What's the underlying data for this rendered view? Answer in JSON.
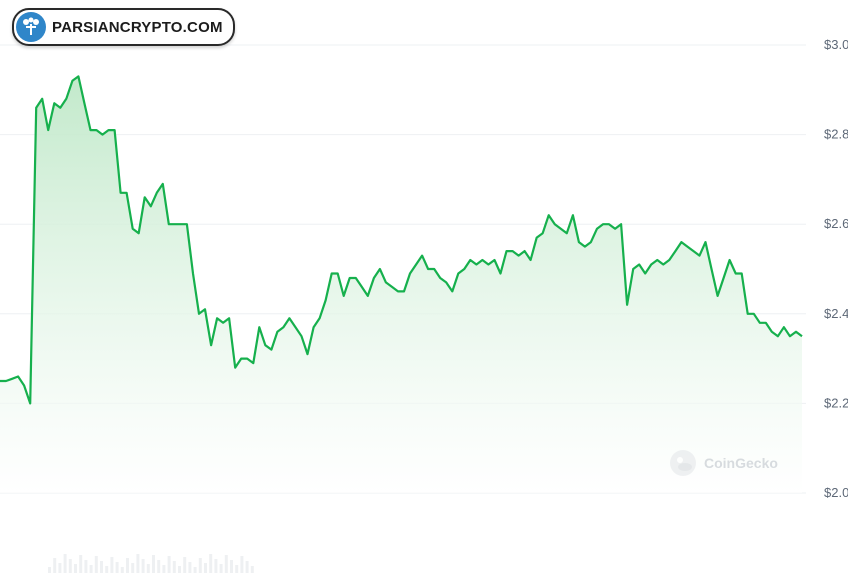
{
  "brand": {
    "name": "PARSIANCRYPTO.COM",
    "logo_icon": "tree-icon"
  },
  "watermark": {
    "text": "CoinGecko",
    "icon": "gecko-icon"
  },
  "colors": {
    "line": "#16b04d",
    "fill_top": "#bfe8c8",
    "grid": "#eef0f3",
    "axis_text": "#5d6877"
  },
  "chart_data": {
    "type": "area",
    "y_tick_labels": [
      "$3.0",
      "$2.8",
      "$2.6",
      "$2.4",
      "$2.2",
      "$2.0"
    ],
    "y_ticks": [
      3.0,
      2.8,
      2.6,
      2.4,
      2.2,
      2.0
    ],
    "ylim": [
      2.0,
      3.0
    ],
    "grid": true,
    "series": [
      {
        "values": [
          2.25,
          2.25,
          2.255,
          2.26,
          2.24,
          2.2,
          2.86,
          2.88,
          2.81,
          2.87,
          2.86,
          2.88,
          2.92,
          2.93,
          2.87,
          2.81,
          2.81,
          2.8,
          2.81,
          2.81,
          2.67,
          2.67,
          2.59,
          2.58,
          2.66,
          2.64,
          2.67,
          2.69,
          2.6,
          2.6,
          2.6,
          2.6,
          2.49,
          2.4,
          2.41,
          2.33,
          2.39,
          2.38,
          2.39,
          2.28,
          2.3,
          2.3,
          2.29,
          2.37,
          2.33,
          2.32,
          2.36,
          2.37,
          2.39,
          2.37,
          2.35,
          2.31,
          2.37,
          2.39,
          2.43,
          2.49,
          2.49,
          2.44,
          2.48,
          2.48,
          2.46,
          2.44,
          2.48,
          2.5,
          2.47,
          2.46,
          2.45,
          2.45,
          2.49,
          2.51,
          2.53,
          2.5,
          2.5,
          2.48,
          2.47,
          2.45,
          2.49,
          2.5,
          2.52,
          2.51,
          2.52,
          2.51,
          2.52,
          2.49,
          2.54,
          2.54,
          2.53,
          2.54,
          2.52,
          2.57,
          2.58,
          2.62,
          2.6,
          2.59,
          2.58,
          2.62,
          2.56,
          2.55,
          2.56,
          2.59,
          2.6,
          2.6,
          2.59,
          2.6,
          2.42,
          2.5,
          2.51,
          2.49,
          2.51,
          2.52,
          2.51,
          2.52,
          2.54,
          2.56,
          2.55,
          2.54,
          2.53,
          2.56,
          2.5,
          2.44,
          2.48,
          2.52,
          2.49,
          2.49,
          2.4,
          2.4,
          2.38,
          2.38,
          2.36,
          2.35,
          2.37,
          2.35,
          2.36,
          2.35
        ]
      }
    ]
  }
}
